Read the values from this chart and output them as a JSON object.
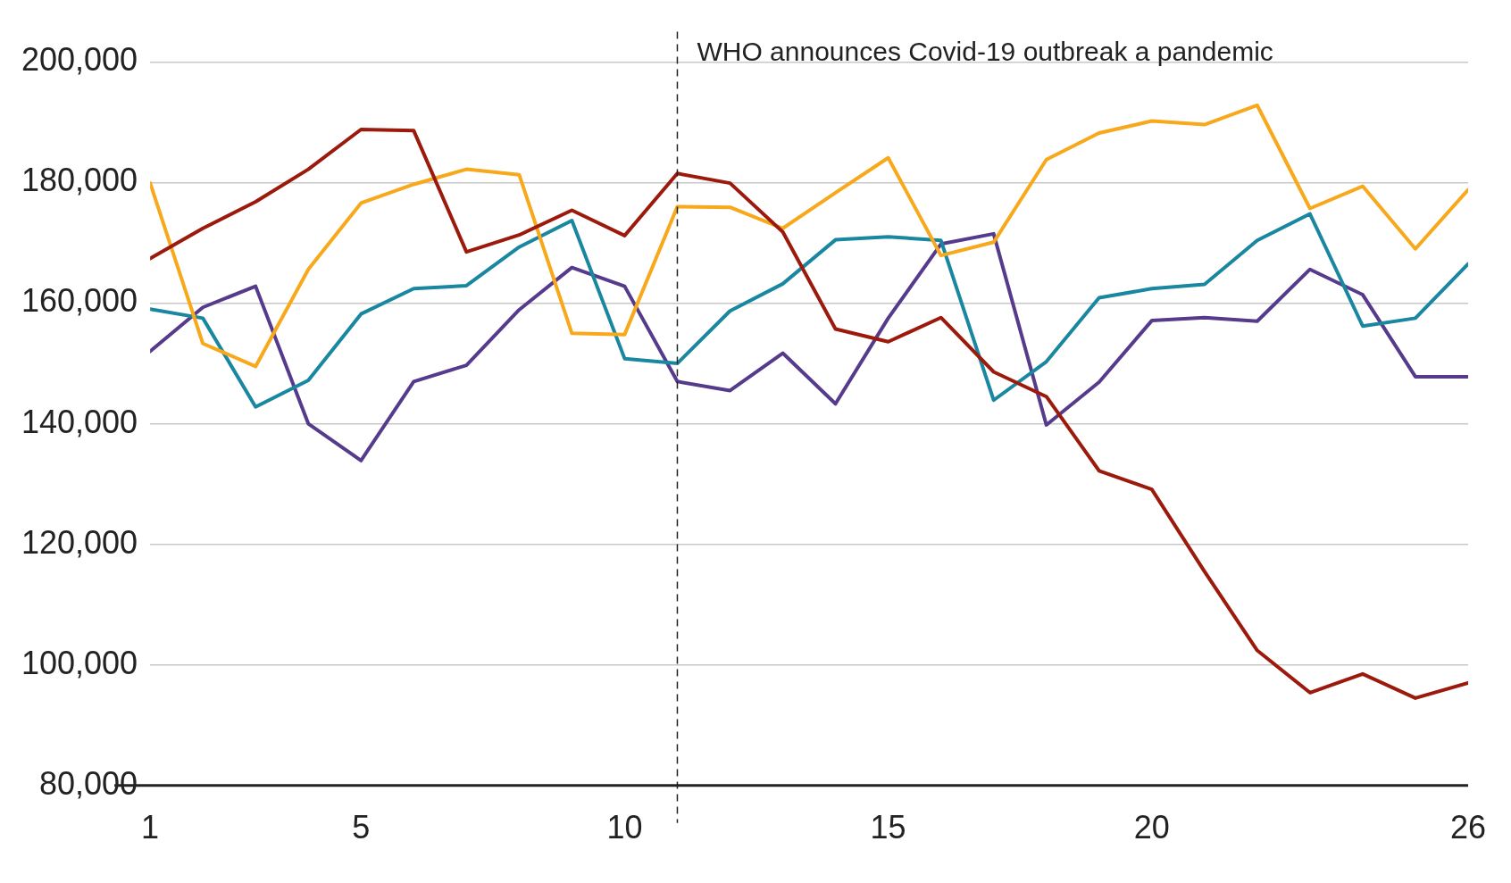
{
  "chart_data": {
    "type": "line",
    "x": [
      1,
      2,
      3,
      4,
      5,
      6,
      7,
      8,
      9,
      10,
      11,
      12,
      13,
      14,
      15,
      16,
      17,
      18,
      19,
      20,
      21,
      22,
      23,
      24,
      25,
      26
    ],
    "series": [
      {
        "color": "#9b1a0c",
        "values": [
          167400,
          172400,
          176800,
          182200,
          188800,
          188600,
          168500,
          171300,
          175400,
          171200,
          181500,
          179900,
          171800,
          155700,
          153600,
          157600,
          148600,
          144500,
          132200,
          129100,
          115500,
          102400,
          95400,
          98500,
          94500,
          97000
        ]
      },
      {
        "color": "#f7a81b",
        "values": [
          179900,
          153300,
          149500,
          165600,
          176600,
          179700,
          182200,
          181300,
          155000,
          154800,
          176000,
          175900,
          172400,
          178300,
          184100,
          167900,
          170100,
          183800,
          188200,
          190200,
          189600,
          192800,
          175700,
          179400,
          169000,
          178800
        ]
      },
      {
        "color": "#1a87a0",
        "values": [
          159000,
          157500,
          142800,
          147200,
          158200,
          162400,
          162900,
          169300,
          173700,
          150800,
          150000,
          158700,
          163200,
          170500,
          171000,
          170400,
          143900,
          150300,
          160900,
          162400,
          163100,
          170400,
          174800,
          156200,
          157500,
          166500
        ]
      },
      {
        "color": "#563a8c",
        "values": [
          152000,
          159300,
          162800,
          140000,
          133900,
          147000,
          149700,
          158900,
          165900,
          162800,
          147000,
          145500,
          151700,
          143300,
          157500,
          169800,
          171500,
          139800,
          146900,
          157100,
          157600,
          157000,
          165600,
          161400,
          147800,
          147800
        ]
      }
    ],
    "xlim": [
      1,
      26
    ],
    "xticks": [
      1,
      5,
      10,
      15,
      20,
      26
    ],
    "ylim": [
      80000,
      205000
    ],
    "yticks": [
      {
        "value": 80000,
        "label": "80,000"
      },
      {
        "value": 100000,
        "label": "100,000"
      },
      {
        "value": 120000,
        "label": "120,000"
      },
      {
        "value": 140000,
        "label": "140,000"
      },
      {
        "value": 160000,
        "label": "160,000"
      },
      {
        "value": 180000,
        "label": "180,000"
      },
      {
        "value": 200000,
        "label": "200,000"
      }
    ],
    "grid": "y",
    "legend": false,
    "marker": "none",
    "line_style": "solid",
    "ref_lines": [
      {
        "axis": "x",
        "value": 11,
        "label": "WHO announces Covid-19 outbreak a pandemic",
        "line_style": "dashed",
        "color": "#222222"
      }
    ]
  }
}
